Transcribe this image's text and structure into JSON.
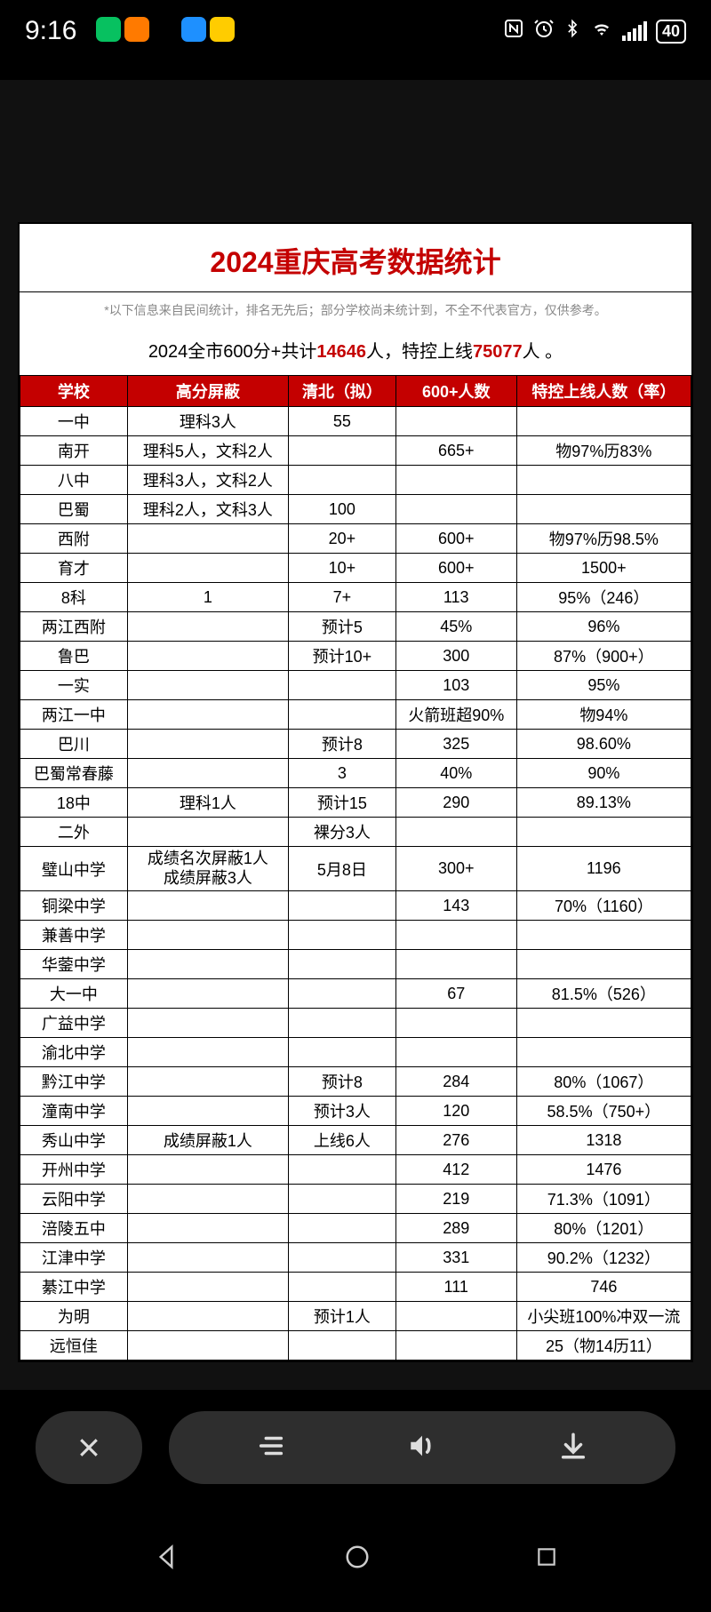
{
  "status": {
    "time": "9:16",
    "app_icons": [
      {
        "bg": "#07c160"
      },
      {
        "bg": "#ff7a00"
      },
      {
        "bg": "#000000"
      },
      {
        "bg": "#1e90ff"
      },
      {
        "bg": "#ffcc00"
      }
    ],
    "battery": "40"
  },
  "doc": {
    "title": "2024重庆高考数据统计",
    "note": "*以下信息来自民间统计，排名无先后；部分学校尚未统计到，不全不代表官方，仅供参考。",
    "summary_prefix": "2024全市600分+共计",
    "summary_v1": "14646",
    "summary_mid": "人，特控上线",
    "summary_v2": "75077",
    "summary_suffix": "人 。"
  },
  "table": {
    "headers": [
      "学校",
      "高分屏蔽",
      "清北（拟）",
      "600+人数",
      "特控上线人数（率）"
    ],
    "header_bg": "#c40000",
    "header_fg": "#ffffff",
    "rows": [
      [
        "一中",
        "理科3人",
        "55",
        "",
        ""
      ],
      [
        "南开",
        "理科5人，文科2人",
        "",
        "665+",
        "物97%历83%"
      ],
      [
        "八中",
        "理科3人，文科2人",
        "",
        "",
        ""
      ],
      [
        "巴蜀",
        "理科2人，文科3人",
        "100",
        "",
        ""
      ],
      [
        "西附",
        "",
        "20+",
        "600+",
        "物97%历98.5%"
      ],
      [
        "育才",
        "",
        "10+",
        "600+",
        "1500+"
      ],
      [
        "8科",
        "1",
        "7+",
        "113",
        "95%（246）"
      ],
      [
        "两江西附",
        "",
        "预计5",
        "45%",
        "96%"
      ],
      [
        "鲁巴",
        "",
        "预计10+",
        "300",
        "87%（900+）"
      ],
      [
        "一实",
        "",
        "",
        "103",
        "95%"
      ],
      [
        "两江一中",
        "",
        "",
        "火箭班超90%",
        "物94%"
      ],
      [
        "巴川",
        "",
        "预计8",
        "325",
        "98.60%"
      ],
      [
        "巴蜀常春藤",
        "",
        "3",
        "40%",
        "90%"
      ],
      [
        "18中",
        "理科1人",
        "预计15",
        "290",
        "89.13%"
      ],
      [
        "二外",
        "",
        "裸分3人",
        "",
        ""
      ],
      [
        "璧山中学",
        "成绩名次屏蔽1人\n成绩屏蔽3人",
        "5月8日",
        "300+",
        "1196"
      ],
      [
        "铜梁中学",
        "",
        "",
        "143",
        "70%（1160）"
      ],
      [
        "兼善中学",
        "",
        "",
        "",
        ""
      ],
      [
        "华蓥中学",
        "",
        "",
        "",
        ""
      ],
      [
        "大一中",
        "",
        "",
        "67",
        "81.5%（526）"
      ],
      [
        "广益中学",
        "",
        "",
        "",
        ""
      ],
      [
        "渝北中学",
        "",
        "",
        "",
        ""
      ],
      [
        "黔江中学",
        "",
        "预计8",
        "284",
        "80%（1067）"
      ],
      [
        "潼南中学",
        "",
        "预计3人",
        "120",
        "58.5%（750+）"
      ],
      [
        "秀山中学",
        "成绩屏蔽1人",
        "上线6人",
        "276",
        "1318"
      ],
      [
        "开州中学",
        "",
        "",
        "412",
        "1476"
      ],
      [
        "云阳中学",
        "",
        "",
        "219",
        "71.3%（1091）"
      ],
      [
        "涪陵五中",
        "",
        "",
        "289",
        "80%（1201）"
      ],
      [
        "江津中学",
        "",
        "",
        "331",
        "90.2%（1232）"
      ],
      [
        "綦江中学",
        "",
        "",
        "111",
        "746"
      ],
      [
        "为明",
        "",
        "预计1人",
        "",
        "小尖班100%冲双一流"
      ],
      [
        "远恒佳",
        "",
        "",
        "",
        "25（物14历11）"
      ]
    ]
  }
}
